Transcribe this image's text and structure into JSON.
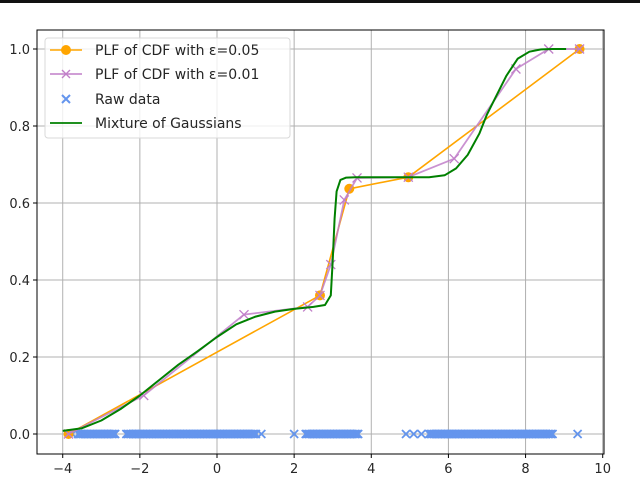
{
  "chart_data": {
    "type": "line",
    "title": "",
    "xlabel": "",
    "ylabel": "",
    "xlim": [
      -4.4,
      10.4
    ],
    "ylim": [
      -0.05,
      1.05
    ],
    "grid": true,
    "legend_position": "upper left",
    "x_ticks": [
      -4,
      -2,
      0,
      2,
      4,
      6,
      8,
      10
    ],
    "x_tick_labels": [
      "−4",
      "−2",
      "0",
      "2",
      "4",
      "6",
      "8",
      "10"
    ],
    "y_ticks": [
      0.0,
      0.2,
      0.4,
      0.6,
      0.8,
      1.0
    ],
    "y_tick_labels": [
      "0.0",
      "0.2",
      "0.4",
      "0.6",
      "0.8",
      "1.0"
    ],
    "series": [
      {
        "name": "PLF of CDF with ε=0.05",
        "type": "line+marker",
        "marker": "circle",
        "color": "#ffa500",
        "x": [
          -3.85,
          2.67,
          3.43,
          4.96,
          9.4
        ],
        "y": [
          0.0,
          0.36,
          0.637,
          0.667,
          1.0
        ]
      },
      {
        "name": "PLF of CDF with ε=0.01",
        "type": "line+marker",
        "marker": "x",
        "color": "#c17fc9",
        "x": [
          -3.85,
          -1.9,
          0.7,
          2.35,
          2.67,
          2.95,
          3.3,
          3.63,
          4.96,
          6.15,
          7.75,
          8.6,
          9.4
        ],
        "y": [
          0.0,
          0.1,
          0.31,
          0.33,
          0.36,
          0.44,
          0.608,
          0.665,
          0.667,
          0.715,
          0.948,
          1.0,
          1.0
        ]
      },
      {
        "name": "Raw data",
        "type": "scatter",
        "marker": "x",
        "color": "#6495ed",
        "segments": [
          [
            -3.6,
            -2.6
          ],
          [
            -2.35,
            1.05
          ],
          [
            2.3,
            3.7
          ],
          [
            5.5,
            8.7
          ]
        ],
        "isolated": [
          -3.75,
          1.15,
          2.0,
          4.9,
          5.1,
          5.3,
          9.35
        ],
        "y": 0.0
      },
      {
        "name": "Mixture of Gaussians",
        "type": "line",
        "color": "#008000",
        "x": [
          -4.0,
          -3.5,
          -3.0,
          -2.5,
          -2.0,
          -1.5,
          -1.0,
          -0.5,
          0.0,
          0.5,
          1.0,
          1.5,
          2.0,
          2.5,
          2.8,
          2.95,
          3.0,
          3.05,
          3.1,
          3.2,
          3.35,
          3.6,
          4.0,
          5.0,
          5.5,
          5.9,
          6.2,
          6.5,
          6.8,
          7.0,
          7.2,
          7.5,
          7.8,
          8.1,
          8.4,
          8.7,
          9.05
        ],
        "y": [
          0.008,
          0.015,
          0.035,
          0.065,
          0.1,
          0.14,
          0.18,
          0.215,
          0.252,
          0.285,
          0.305,
          0.318,
          0.325,
          0.33,
          0.335,
          0.36,
          0.45,
          0.56,
          0.63,
          0.66,
          0.666,
          0.667,
          0.667,
          0.667,
          0.667,
          0.672,
          0.69,
          0.725,
          0.78,
          0.83,
          0.87,
          0.93,
          0.975,
          0.993,
          0.999,
          1.0,
          1.0
        ]
      }
    ]
  },
  "legend": {
    "items": [
      {
        "label": "PLF of CDF with ε=0.05"
      },
      {
        "label": "PLF of CDF with ε=0.01"
      },
      {
        "label": "Raw data"
      },
      {
        "label": "Mixture of Gaussians"
      }
    ]
  }
}
